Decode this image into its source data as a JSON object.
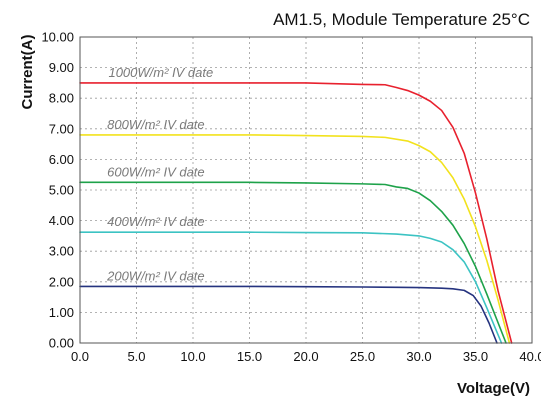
{
  "chart_data": {
    "type": "line",
    "title": "AM1.5, Module Temperature 25°C",
    "xlabel": "Voltage(V)",
    "ylabel": "Current(A)",
    "xlim": [
      0,
      40
    ],
    "ylim": [
      0,
      10
    ],
    "x_ticks": [
      "0.0",
      "5.0",
      "10.0",
      "15.0",
      "20.0",
      "25.0",
      "30.0",
      "35.0",
      "40.0"
    ],
    "y_ticks": [
      "0.00",
      "1.00",
      "2.00",
      "3.00",
      "4.00",
      "5.00",
      "6.00",
      "7.00",
      "8.00",
      "9.00",
      "10.00"
    ],
    "grid": true,
    "series": [
      {
        "name": "1000W/m² IV date",
        "color": "#e8212e",
        "points": [
          [
            0,
            8.5
          ],
          [
            5,
            8.5
          ],
          [
            10,
            8.5
          ],
          [
            15,
            8.5
          ],
          [
            20,
            8.5
          ],
          [
            25,
            8.45
          ],
          [
            27,
            8.44
          ],
          [
            28,
            8.35
          ],
          [
            29,
            8.25
          ],
          [
            30,
            8.1
          ],
          [
            31,
            7.9
          ],
          [
            32,
            7.6
          ],
          [
            33,
            7.05
          ],
          [
            34,
            6.2
          ],
          [
            35,
            4.9
          ],
          [
            36,
            3.4
          ],
          [
            37,
            1.7
          ],
          [
            38.2,
            0
          ]
        ]
      },
      {
        "name": "800W/m² IV date",
        "color": "#f2e21d",
        "points": [
          [
            0,
            6.8
          ],
          [
            5,
            6.8
          ],
          [
            10,
            6.8
          ],
          [
            15,
            6.8
          ],
          [
            20,
            6.78
          ],
          [
            25,
            6.75
          ],
          [
            27,
            6.72
          ],
          [
            29,
            6.6
          ],
          [
            30,
            6.45
          ],
          [
            31,
            6.25
          ],
          [
            32,
            5.9
          ],
          [
            33,
            5.4
          ],
          [
            34,
            4.7
          ],
          [
            35,
            3.8
          ],
          [
            36,
            2.7
          ],
          [
            37,
            1.4
          ],
          [
            38,
            0
          ]
        ]
      },
      {
        "name": "600W/m² IV date",
        "color": "#1ea24a",
        "points": [
          [
            0,
            5.25
          ],
          [
            5,
            5.25
          ],
          [
            10,
            5.25
          ],
          [
            15,
            5.25
          ],
          [
            20,
            5.23
          ],
          [
            25,
            5.2
          ],
          [
            27,
            5.18
          ],
          [
            28,
            5.1
          ],
          [
            29,
            5.05
          ],
          [
            30,
            4.9
          ],
          [
            31,
            4.65
          ],
          [
            32,
            4.3
          ],
          [
            33,
            3.85
          ],
          [
            34,
            3.25
          ],
          [
            35,
            2.5
          ],
          [
            36,
            1.6
          ],
          [
            37.7,
            0
          ]
        ]
      },
      {
        "name": "400W/m² IV date",
        "color": "#3cc3c3",
        "points": [
          [
            0,
            3.62
          ],
          [
            5,
            3.62
          ],
          [
            10,
            3.62
          ],
          [
            15,
            3.62
          ],
          [
            20,
            3.61
          ],
          [
            25,
            3.6
          ],
          [
            28,
            3.56
          ],
          [
            30,
            3.5
          ],
          [
            31,
            3.42
          ],
          [
            32,
            3.3
          ],
          [
            33,
            3.05
          ],
          [
            34,
            2.65
          ],
          [
            35,
            2.0
          ],
          [
            36,
            1.15
          ],
          [
            37.3,
            0
          ]
        ]
      },
      {
        "name": "200W/m² IV date",
        "color": "#25337f",
        "points": [
          [
            0,
            1.85
          ],
          [
            5,
            1.85
          ],
          [
            10,
            1.85
          ],
          [
            15,
            1.85
          ],
          [
            20,
            1.84
          ],
          [
            25,
            1.83
          ],
          [
            28,
            1.82
          ],
          [
            30,
            1.81
          ],
          [
            32,
            1.79
          ],
          [
            33,
            1.77
          ],
          [
            34,
            1.72
          ],
          [
            34.8,
            1.55
          ],
          [
            35.5,
            1.2
          ],
          [
            36.2,
            0.65
          ],
          [
            36.9,
            0
          ]
        ]
      }
    ]
  }
}
